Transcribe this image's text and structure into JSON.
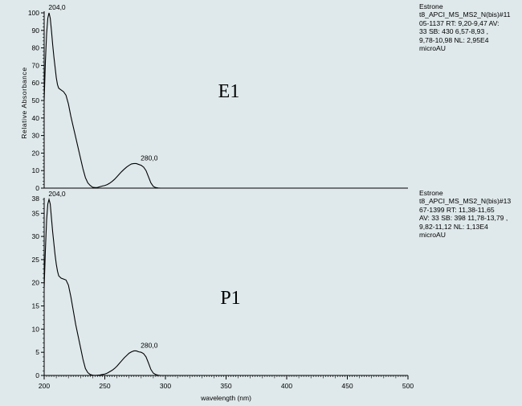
{
  "chart_data": [
    {
      "type": "line",
      "panel_label": "E1",
      "ylabel": "Relative Absorbance",
      "xlim": [
        200,
        500
      ],
      "ylim": [
        0,
        100
      ],
      "yticks": [
        0,
        10,
        20,
        30,
        40,
        50,
        60,
        70,
        80,
        90,
        100
      ],
      "peak_labels": [
        {
          "x": 204,
          "y": 100,
          "text": "204,0"
        },
        {
          "x": 280,
          "y": 14,
          "text": "280,0"
        }
      ],
      "annotation": [
        "Estrone",
        "t8_APCI_MS_MS2_N(bis)#11",
        "05-1137 RT: 9,20-9,47 AV:",
        "33 SB: 430 6,57-8,93 ,",
        "9,78-10,98 NL: 2,95E4",
        "microAU"
      ],
      "series": [
        {
          "x": [
            200,
            201,
            202,
            203,
            204,
            205,
            206,
            207,
            208,
            209,
            210,
            211,
            212,
            214,
            216,
            218,
            220,
            222,
            224,
            226,
            228,
            230,
            232,
            234,
            236,
            238,
            240,
            242,
            244,
            246,
            248,
            250,
            252,
            254,
            256,
            258,
            260,
            262,
            264,
            266,
            268,
            270,
            272,
            274,
            276,
            278,
            280,
            282,
            284,
            286,
            288,
            290,
            292,
            294,
            296,
            300,
            320,
            350,
            400,
            450,
            500
          ],
          "y": [
            50,
            72,
            88,
            97,
            100,
            97,
            90,
            82,
            75,
            69,
            63,
            59,
            57,
            56,
            55,
            53,
            48,
            41,
            35,
            29,
            23,
            17,
            11,
            6,
            3,
            1.5,
            0.5,
            0.3,
            0.4,
            0.8,
            1.2,
            1.5,
            2,
            2.8,
            3.8,
            5,
            6.5,
            8,
            9.5,
            10.8,
            12,
            13,
            13.8,
            14,
            14,
            13.5,
            13,
            12,
            10,
            6.5,
            3,
            1,
            0.3,
            0.1,
            0,
            0,
            0,
            0,
            0,
            0,
            0
          ]
        }
      ]
    },
    {
      "type": "line",
      "panel_label": "P1",
      "xlabel": "wavelength (nm)",
      "xlim": [
        200,
        500
      ],
      "ylim": [
        0,
        38
      ],
      "xticks": [
        200,
        250,
        300,
        350,
        400,
        450,
        500
      ],
      "yticks": [
        0,
        5,
        10,
        15,
        20,
        25,
        30,
        35
      ],
      "y_top_label": "38",
      "peak_labels": [
        {
          "x": 204,
          "y": 38,
          "text": "204,0"
        },
        {
          "x": 280,
          "y": 5.3,
          "text": "280,0"
        }
      ],
      "annotation": [
        "Estrone",
        "t8_APCI_MS_MS2_N(bis)#13",
        "67-1399 RT: 11,38-11,65",
        "AV: 33 SB: 398 11,78-13,79 ,",
        "9,82-11,12 NL: 1,13E4",
        "microAU"
      ],
      "series": [
        {
          "x": [
            200,
            201,
            202,
            203,
            204,
            205,
            206,
            207,
            208,
            209,
            210,
            211,
            212,
            214,
            216,
            218,
            220,
            222,
            224,
            226,
            228,
            230,
            232,
            234,
            236,
            238,
            240,
            242,
            244,
            246,
            248,
            250,
            252,
            254,
            256,
            258,
            260,
            262,
            264,
            266,
            268,
            270,
            272,
            274,
            276,
            278,
            280,
            282,
            284,
            286,
            288,
            290,
            292,
            294,
            296,
            300,
            320,
            350,
            400,
            450,
            500
          ],
          "y": [
            19,
            27,
            33.5,
            37,
            38,
            37,
            34,
            31,
            28.5,
            26,
            24,
            22.5,
            21.5,
            21,
            20.8,
            20.6,
            19.5,
            17,
            14,
            11,
            8.5,
            6,
            3.5,
            1.5,
            0.6,
            0.2,
            0.05,
            0.02,
            0.05,
            0.1,
            0.2,
            0.3,
            0.5,
            0.8,
            1.1,
            1.5,
            2,
            2.6,
            3.2,
            3.8,
            4.3,
            4.8,
            5.1,
            5.3,
            5.3,
            5.1,
            5,
            4.7,
            4,
            2.7,
            1.3,
            0.5,
            0.2,
            0.05,
            0,
            0,
            0,
            0,
            0,
            0,
            0
          ]
        }
      ]
    }
  ]
}
